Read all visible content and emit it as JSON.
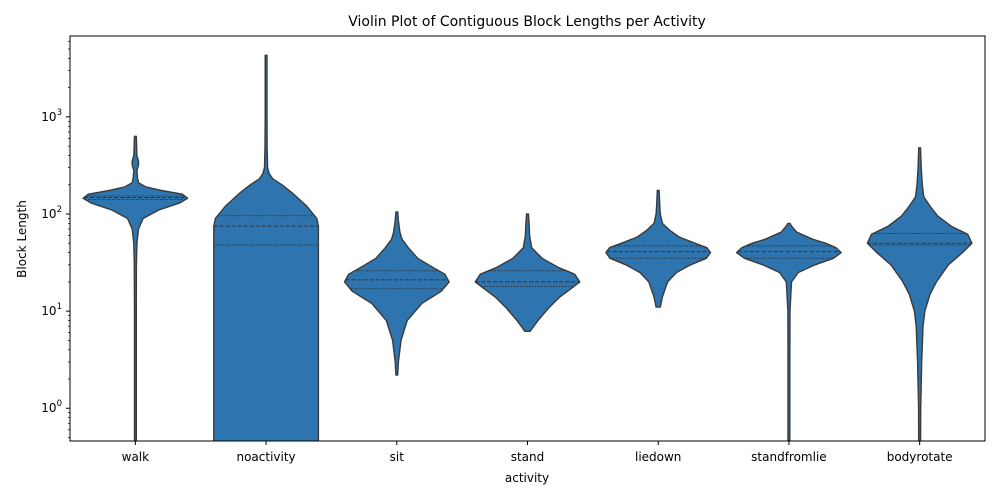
{
  "chart_data": {
    "type": "violin",
    "title": "Violin Plot of Contiguous Block Lengths per Activity",
    "xlabel": "activity",
    "ylabel": "Block Length",
    "yscale": "log",
    "ylim": [
      0.46,
      6800
    ],
    "yticks": [
      {
        "base": "10",
        "exp": "0",
        "value": 1
      },
      {
        "base": "10",
        "exp": "1",
        "value": 10
      },
      {
        "base": "10",
        "exp": "2",
        "value": 100
      },
      {
        "base": "10",
        "exp": "3",
        "value": 1000
      }
    ],
    "grid": false,
    "legend": "none",
    "color": "#2e75b0",
    "edge_color": "#3a3a3a",
    "categories": [
      "walk",
      "noactivity",
      "sit",
      "stand",
      "liedown",
      "standfromlie",
      "bodyrotate"
    ],
    "violins": [
      {
        "name": "walk",
        "quartiles": [
          141,
          148,
          153
        ],
        "profile": [
          [
            0.3,
            0.01
          ],
          [
            1,
            0.01
          ],
          [
            3,
            0.012
          ],
          [
            10,
            0.015
          ],
          [
            30,
            0.02
          ],
          [
            50,
            0.03
          ],
          [
            70,
            0.06
          ],
          [
            90,
            0.15
          ],
          [
            110,
            0.45
          ],
          [
            130,
            0.85
          ],
          [
            145,
            1.0
          ],
          [
            160,
            0.9
          ],
          [
            175,
            0.5
          ],
          [
            190,
            0.2
          ],
          [
            210,
            0.06
          ],
          [
            240,
            0.04
          ],
          [
            280,
            0.03
          ],
          [
            320,
            0.06
          ],
          [
            350,
            0.06
          ],
          [
            400,
            0.03
          ],
          [
            630,
            0.015
          ]
        ]
      },
      {
        "name": "noactivity",
        "quartiles": [
          48,
          75,
          96
        ],
        "profile": [
          [
            0.3,
            1.0
          ],
          [
            1,
            1.0
          ],
          [
            5,
            1.0
          ],
          [
            20,
            1.0
          ],
          [
            33,
            1.0
          ],
          [
            40,
            1.0
          ],
          [
            75,
            1.0
          ],
          [
            90,
            0.97
          ],
          [
            120,
            0.78
          ],
          [
            165,
            0.5
          ],
          [
            200,
            0.3
          ],
          [
            230,
            0.13
          ],
          [
            260,
            0.06
          ],
          [
            300,
            0.03
          ],
          [
            500,
            0.02
          ],
          [
            1000,
            0.015
          ],
          [
            4300,
            0.01
          ]
        ]
      },
      {
        "name": "sit",
        "quartiles": [
          17,
          21,
          26
        ],
        "profile": [
          [
            2.2,
            0.01
          ],
          [
            3,
            0.03
          ],
          [
            5,
            0.08
          ],
          [
            8,
            0.2
          ],
          [
            12,
            0.48
          ],
          [
            16,
            0.85
          ],
          [
            20,
            1.0
          ],
          [
            24,
            0.92
          ],
          [
            28,
            0.7
          ],
          [
            35,
            0.4
          ],
          [
            45,
            0.22
          ],
          [
            55,
            0.1
          ],
          [
            65,
            0.06
          ],
          [
            85,
            0.03
          ],
          [
            105,
            0.01
          ]
        ]
      },
      {
        "name": "stand",
        "quartiles": [
          18,
          20,
          26
        ],
        "profile": [
          [
            6.2,
            0.05
          ],
          [
            8,
            0.2
          ],
          [
            11,
            0.42
          ],
          [
            14,
            0.62
          ],
          [
            17,
            0.83
          ],
          [
            20,
            1.0
          ],
          [
            24,
            0.9
          ],
          [
            28,
            0.6
          ],
          [
            35,
            0.28
          ],
          [
            45,
            0.08
          ],
          [
            60,
            0.04
          ],
          [
            80,
            0.03
          ],
          [
            100,
            0.01
          ]
        ]
      },
      {
        "name": "liedown",
        "quartiles": [
          35,
          41,
          47
        ],
        "profile": [
          [
            11,
            0.04
          ],
          [
            14,
            0.08
          ],
          [
            20,
            0.18
          ],
          [
            25,
            0.35
          ],
          [
            30,
            0.62
          ],
          [
            35,
            0.92
          ],
          [
            40,
            1.0
          ],
          [
            45,
            0.93
          ],
          [
            50,
            0.7
          ],
          [
            58,
            0.4
          ],
          [
            68,
            0.22
          ],
          [
            80,
            0.08
          ],
          [
            100,
            0.04
          ],
          [
            120,
            0.03
          ],
          [
            175,
            0.015
          ]
        ]
      },
      {
        "name": "standfromlie",
        "quartiles": [
          35,
          41,
          47
        ],
        "profile": [
          [
            0.3,
            0.01
          ],
          [
            1,
            0.01
          ],
          [
            3,
            0.015
          ],
          [
            10,
            0.02
          ],
          [
            20,
            0.05
          ],
          [
            25,
            0.18
          ],
          [
            30,
            0.5
          ],
          [
            35,
            0.85
          ],
          [
            40,
            1.0
          ],
          [
            45,
            0.9
          ],
          [
            50,
            0.7
          ],
          [
            55,
            0.45
          ],
          [
            65,
            0.15
          ],
          [
            75,
            0.05
          ],
          [
            80,
            0.02
          ]
        ]
      },
      {
        "name": "bodyrotate",
        "quartiles": [
          48,
          50,
          63
        ],
        "profile": [
          [
            0.3,
            0.012
          ],
          [
            1,
            0.02
          ],
          [
            3,
            0.04
          ],
          [
            7,
            0.065
          ],
          [
            10,
            0.1
          ],
          [
            15,
            0.2
          ],
          [
            20,
            0.32
          ],
          [
            30,
            0.55
          ],
          [
            40,
            0.82
          ],
          [
            50,
            1.0
          ],
          [
            62,
            0.92
          ],
          [
            75,
            0.6
          ],
          [
            95,
            0.35
          ],
          [
            120,
            0.2
          ],
          [
            150,
            0.08
          ],
          [
            200,
            0.05
          ],
          [
            300,
            0.03
          ],
          [
            480,
            0.01
          ]
        ]
      }
    ]
  }
}
